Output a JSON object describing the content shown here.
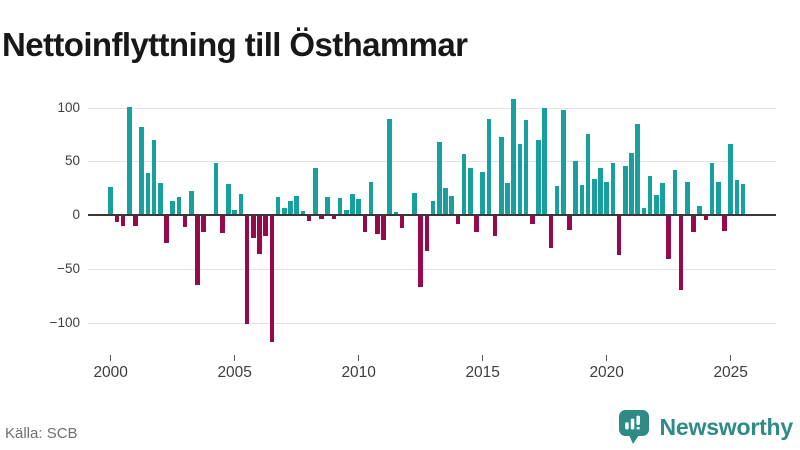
{
  "title": "Nettoinflyttning till Östhammar",
  "source": "Källa: SCB",
  "branding": {
    "name": "Newsworthy",
    "icon": "newsworthy-speech-bubble-bar-chart-icon"
  },
  "colors": {
    "positive": "#17a09d",
    "negative": "#96094a",
    "baseline": "#383838",
    "gridline": "#e3e3e3",
    "axis_text": "#3d3d3d",
    "title_text": "#181818",
    "source_text": "#707070",
    "brand": "#2e8a86"
  },
  "chart_data": {
    "type": "bar",
    "title": "Nettoinflyttning till Östhammar",
    "frequency": "quarterly",
    "x_start": "2000 Q1",
    "x_end": "2025 Q3",
    "x_tick_years": [
      2000,
      2005,
      2010,
      2015,
      2020,
      2025
    ],
    "y_ticks": [
      {
        "value": 100,
        "label": "100"
      },
      {
        "value": 50,
        "label": "50"
      },
      {
        "value": 0,
        "label": "0"
      },
      {
        "value": -50,
        "label": "−50"
      },
      {
        "value": -100,
        "label": "−100"
      }
    ],
    "ylim": [
      -125,
      115
    ],
    "grid": true,
    "legend": false,
    "values": [
      25,
      -6,
      -9,
      100,
      -9,
      81,
      38,
      69,
      29,
      -25,
      12,
      16,
      -10,
      21,
      -64,
      -15,
      0,
      47,
      -16,
      28,
      4,
      19,
      -100,
      -20,
      -35,
      -19,
      -117,
      16,
      6,
      12,
      17,
      3,
      -5,
      43,
      -3,
      16,
      -3,
      15,
      4,
      19,
      14,
      -15,
      30,
      -17,
      -22,
      88,
      2,
      -11,
      0,
      20,
      -66,
      -33,
      12,
      67,
      24,
      17,
      -7,
      56,
      43,
      -15,
      39,
      88,
      -19,
      72,
      29,
      107,
      65,
      87,
      -7,
      69,
      99,
      -30,
      26,
      97,
      -13,
      49,
      27,
      74,
      33,
      43,
      30,
      47,
      -36,
      45,
      57,
      84,
      6,
      35,
      18,
      29,
      -40,
      41,
      -69,
      30,
      -15,
      7,
      -4,
      47,
      30,
      -14,
      65,
      32,
      28
    ]
  }
}
